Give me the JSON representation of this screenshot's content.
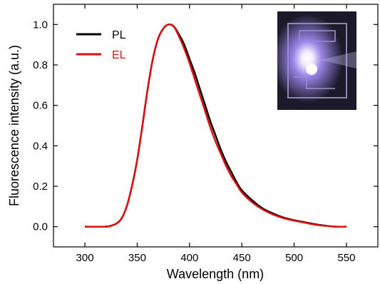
{
  "chart_data": {
    "type": "line",
    "xlabel": "Wavelength (nm)",
    "ylabel": "Fluorescence intensity (a.u.)",
    "xlim": [
      270,
      580
    ],
    "ylim": [
      -0.1,
      1.1
    ],
    "xticks": [
      300,
      350,
      400,
      450,
      500,
      550
    ],
    "yticks": [
      0.0,
      0.2,
      0.4,
      0.6,
      0.8,
      1.0
    ],
    "x_tick_labels": [
      "300",
      "350",
      "400",
      "450",
      "500",
      "550"
    ],
    "y_tick_labels": [
      "0.0",
      "0.2",
      "0.4",
      "0.6",
      "0.8",
      "1.0"
    ],
    "grid": false,
    "legend_position": "top-left",
    "series": [
      {
        "name": "PL",
        "color": "#000000",
        "x": [
          300,
          320,
          325,
          330,
          335,
          340,
          345,
          350,
          355,
          360,
          365,
          370,
          375,
          380,
          385,
          390,
          395,
          400,
          405,
          410,
          415,
          420,
          425,
          430,
          435,
          440,
          445,
          450,
          460,
          470,
          480,
          490,
          500,
          510,
          520,
          530,
          540,
          550
        ],
        "y": [
          0.0,
          0.0,
          0.005,
          0.015,
          0.04,
          0.1,
          0.2,
          0.33,
          0.5,
          0.68,
          0.83,
          0.93,
          0.98,
          1.0,
          0.99,
          0.95,
          0.9,
          0.83,
          0.76,
          0.68,
          0.6,
          0.52,
          0.45,
          0.38,
          0.32,
          0.27,
          0.22,
          0.18,
          0.13,
          0.09,
          0.065,
          0.045,
          0.032,
          0.022,
          0.012,
          0.005,
          0.0,
          0.0
        ]
      },
      {
        "name": "EL",
        "color": "#e01010",
        "x": [
          300,
          320,
          325,
          330,
          335,
          340,
          345,
          350,
          355,
          360,
          365,
          370,
          375,
          380,
          385,
          390,
          395,
          400,
          405,
          410,
          415,
          420,
          425,
          430,
          435,
          440,
          445,
          450,
          460,
          470,
          480,
          490,
          500,
          510,
          520,
          530,
          540,
          550
        ],
        "y": [
          0.0,
          0.0,
          0.005,
          0.015,
          0.04,
          0.1,
          0.2,
          0.33,
          0.5,
          0.68,
          0.83,
          0.93,
          0.98,
          1.0,
          0.99,
          0.94,
          0.88,
          0.81,
          0.73,
          0.65,
          0.57,
          0.49,
          0.42,
          0.36,
          0.3,
          0.25,
          0.21,
          0.17,
          0.12,
          0.085,
          0.06,
          0.042,
          0.03,
          0.02,
          0.01,
          0.004,
          0.0,
          0.0
        ]
      }
    ],
    "inset": {
      "type": "photo",
      "description_icon": "device-photo",
      "position": "top-right"
    }
  }
}
